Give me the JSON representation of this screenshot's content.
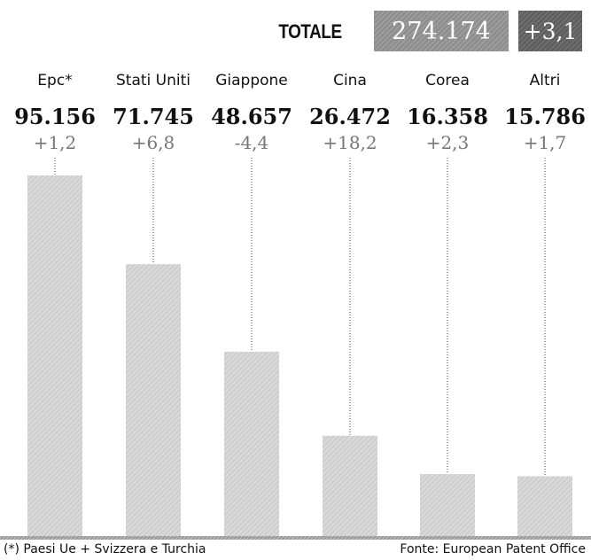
{
  "header": {
    "total_label": "TOTALE",
    "total_value": "274.174",
    "total_change": "+3,1"
  },
  "chart_data": {
    "type": "bar",
    "categories": [
      "Epc*",
      "Stati Uniti",
      "Giappone",
      "Cina",
      "Corea",
      "Altri"
    ],
    "values": [
      95156,
      71745,
      48657,
      26472,
      16358,
      15786
    ],
    "value_labels": [
      "95.156",
      "71.745",
      "48.657",
      "26.472",
      "16.358",
      "15.786"
    ],
    "changes": [
      1.2,
      6.8,
      -4.4,
      18.2,
      2.3,
      1.7
    ],
    "change_labels": [
      "+1,2",
      "+6,8",
      "-4,4",
      "+18,2",
      "+2,3",
      "+1,7"
    ],
    "ylim": [
      0,
      95156
    ],
    "grid": false,
    "total": 274174,
    "total_change": 3.1
  },
  "footer": {
    "note": "(*) Paesi Ue + Svizzera e Turchia",
    "source": "Fonte: European Patent Office"
  },
  "colors": {
    "bar": "#cfcfcf",
    "text": "#111111",
    "change_text": "#777777",
    "total_value_box": "#8e8e8e",
    "total_change_box": "#5f5f5f"
  }
}
